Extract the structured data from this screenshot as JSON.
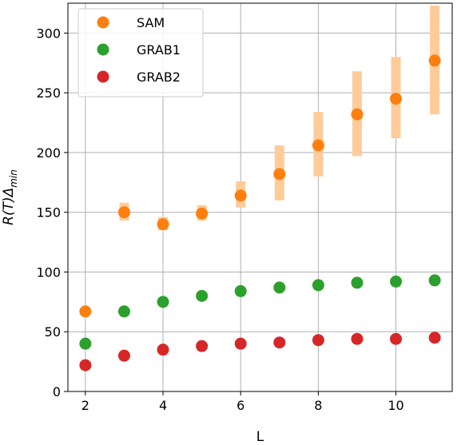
{
  "chart_data": {
    "type": "scatter",
    "title": "",
    "xlabel": "L",
    "ylabel": "R(T)Δ",
    "ylabel_subscript": "min",
    "xlim": [
      1.55,
      11.45
    ],
    "ylim": [
      0,
      325
    ],
    "xticks": [
      2,
      4,
      6,
      8,
      10
    ],
    "yticks": [
      0,
      50,
      100,
      150,
      200,
      250,
      300
    ],
    "grid": true,
    "legend_position": "top-left",
    "series": [
      {
        "name": "SAM",
        "color": "#ff7f0e",
        "band_color": "#ffcc99",
        "x": [
          2,
          3,
          4,
          5,
          6,
          7,
          8,
          9,
          10,
          11
        ],
        "y": [
          67,
          150,
          140,
          149,
          164,
          182,
          206,
          232,
          245,
          277
        ],
        "err_low": [
          null,
          143,
          135,
          143,
          154,
          160,
          180,
          197,
          212,
          232
        ],
        "err_high": [
          null,
          158,
          146,
          156,
          176,
          206,
          234,
          268,
          280,
          323
        ]
      },
      {
        "name": "GRAB1",
        "color": "#2ca02c",
        "x": [
          2,
          3,
          4,
          5,
          6,
          7,
          8,
          9,
          10,
          11
        ],
        "y": [
          40,
          67,
          75,
          80,
          84,
          87,
          89,
          91,
          92,
          93
        ]
      },
      {
        "name": "GRAB2",
        "color": "#d62728",
        "x": [
          2,
          3,
          4,
          5,
          6,
          7,
          8,
          9,
          10,
          11
        ],
        "y": [
          22,
          30,
          35,
          38,
          40,
          41,
          43,
          44,
          44,
          45
        ]
      }
    ]
  }
}
